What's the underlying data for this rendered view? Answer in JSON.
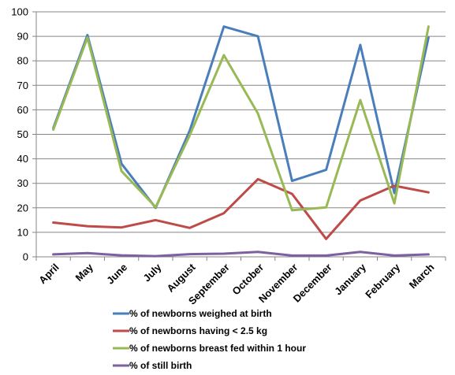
{
  "chart_data": {
    "type": "line",
    "categories": [
      "April",
      "May",
      "June",
      "July",
      "August",
      "September",
      "October",
      "November",
      "December",
      "January",
      "February",
      "March"
    ],
    "ylim": [
      0,
      100
    ],
    "yticks": [
      0,
      10,
      20,
      30,
      40,
      50,
      60,
      70,
      80,
      90,
      100
    ],
    "ytick_labels": [
      "0",
      "10",
      "20",
      "30",
      "40",
      "50",
      "60",
      "70",
      "80",
      "90",
      "100"
    ],
    "grid": true,
    "legend_position": "bottom",
    "series": [
      {
        "name": "% of newborns weighed at birth",
        "color": "#4a7ebb",
        "values": [
          52.5,
          90.5,
          38,
          20,
          51.5,
          94,
          90,
          31,
          35.5,
          86.5,
          26,
          89.5
        ]
      },
      {
        "name": "% of newborns having < 2.5 kg",
        "color": "#be4b48",
        "values": [
          14,
          12.5,
          12,
          15,
          11.8,
          17.8,
          31.7,
          25.7,
          7.3,
          23,
          29,
          26.3
        ]
      },
      {
        "name": "% of newborns breast fed within 1 hour",
        "color": "#98b954",
        "values": [
          51.9,
          89.5,
          35,
          20.3,
          49.6,
          82.3,
          58.5,
          19,
          20.2,
          64,
          21.8,
          94
        ]
      },
      {
        "name": "% of still birth",
        "color": "#7d60a0",
        "values": [
          1,
          1.5,
          0.6,
          0.3,
          1.1,
          1.3,
          2,
          0.5,
          0.5,
          2,
          0.5,
          1
        ]
      }
    ]
  }
}
